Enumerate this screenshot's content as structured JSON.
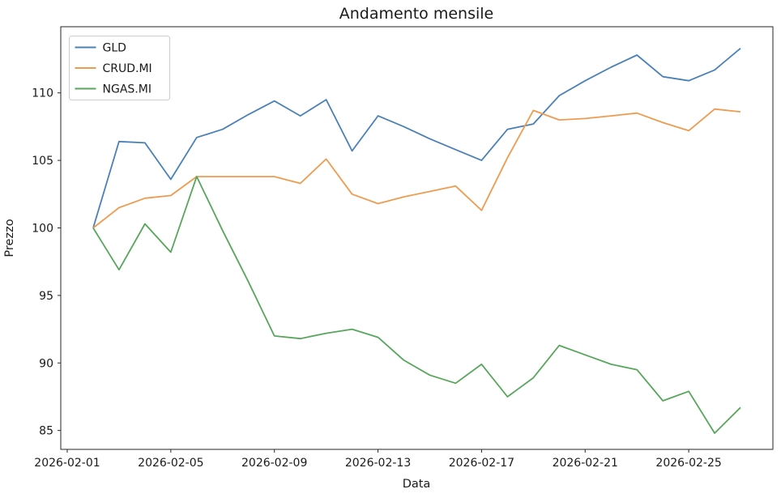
{
  "figure": {
    "title": "Andamento mensile",
    "xlabel": "Data",
    "ylabel": "Prezzo"
  },
  "chart_data": {
    "type": "line",
    "title": "Andamento mensile",
    "xlabel": "Data",
    "ylabel": "Prezzo",
    "grid": false,
    "legend_position": "upper-left",
    "ylim": [
      83.6,
      114.9
    ],
    "y_ticks": [
      85,
      90,
      95,
      100,
      105,
      110
    ],
    "x_tick_labels": [
      "2026-02-01",
      "2026-02-05",
      "2026-02-09",
      "2026-02-13",
      "2026-02-17",
      "2026-02-21",
      "2026-02-25"
    ],
    "x": [
      "2026-02-02",
      "2026-02-03",
      "2026-02-04",
      "2026-02-05",
      "2026-02-06",
      "2026-02-07",
      "2026-02-08",
      "2026-02-09",
      "2026-02-10",
      "2026-02-11",
      "2026-02-12",
      "2026-02-13",
      "2026-02-14",
      "2026-02-15",
      "2026-02-16",
      "2026-02-17",
      "2026-02-18",
      "2026-02-19",
      "2026-02-20",
      "2026-02-21",
      "2026-02-22",
      "2026-02-23",
      "2026-02-24",
      "2026-02-25",
      "2026-02-26",
      "2026-02-27"
    ],
    "series": [
      {
        "name": "GLD",
        "color": "#4a80b8",
        "values": [
          100.0,
          106.4,
          106.3,
          103.6,
          106.7,
          107.3,
          108.4,
          109.4,
          108.3,
          109.5,
          105.7,
          108.3,
          107.5,
          106.6,
          105.8,
          105.0,
          107.3,
          107.7,
          109.8,
          110.9,
          111.9,
          112.8,
          111.2,
          110.9,
          111.7,
          113.3
        ]
      },
      {
        "name": "CRUD.MI",
        "color": "#ee9b4f",
        "values": [
          100.0,
          101.5,
          102.2,
          102.4,
          103.8,
          103.8,
          103.8,
          103.8,
          103.3,
          105.1,
          102.5,
          101.8,
          102.3,
          102.7,
          103.1,
          101.3,
          105.2,
          108.7,
          108.0,
          108.1,
          108.3,
          108.5,
          107.8,
          107.2,
          108.8,
          108.6
        ]
      },
      {
        "name": "NGAS.MI",
        "color": "#57a65b",
        "values": [
          100.0,
          96.9,
          100.3,
          98.2,
          103.8,
          99.8,
          96.0,
          92.0,
          91.8,
          92.2,
          92.5,
          91.9,
          90.2,
          89.1,
          88.5,
          89.9,
          87.5,
          88.9,
          91.3,
          90.6,
          89.9,
          89.5,
          87.2,
          87.9,
          84.8,
          86.7
        ]
      }
    ]
  }
}
